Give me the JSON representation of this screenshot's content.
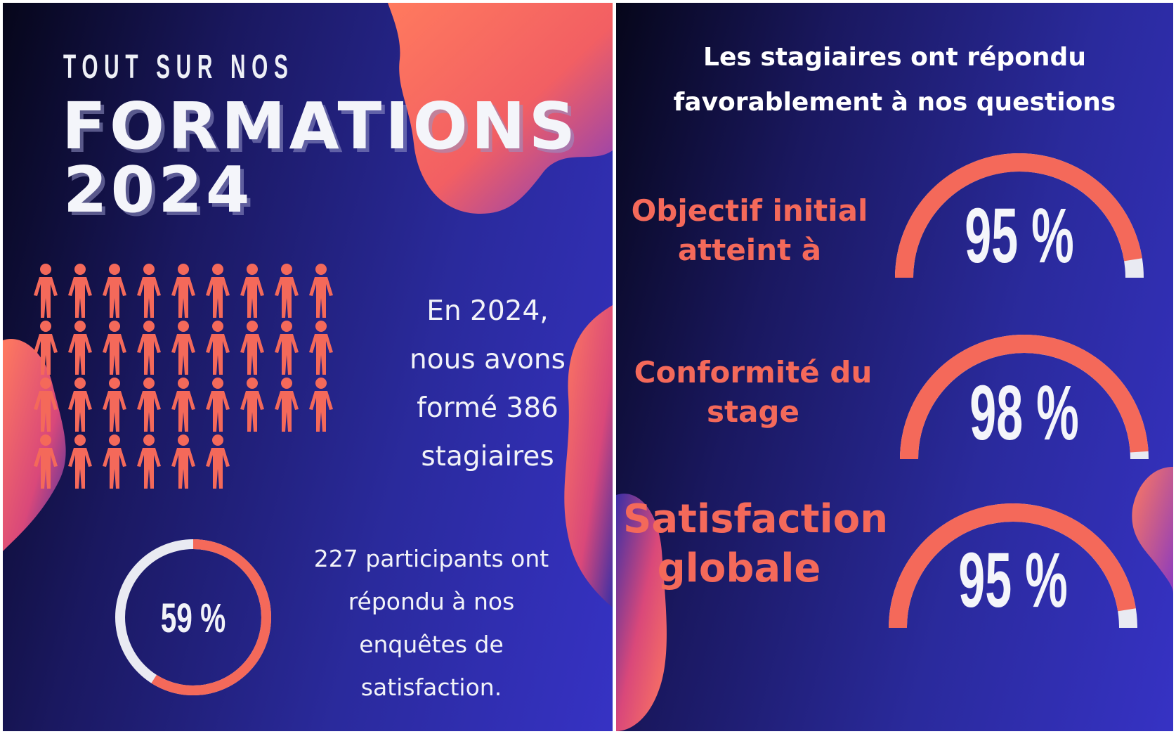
{
  "left": {
    "subtitle": "TOUT SUR NOS",
    "title": "FORMATIONS",
    "year": "2024",
    "trained_lines": [
      "En 2024,",
      "nous avons",
      "formé 386",
      "stagiaires"
    ],
    "response_rate": "59 %",
    "response_fraction": 0.59,
    "response_lines": [
      "227 participants ont",
      "répondu à nos",
      "enquêtes de",
      "satisfaction."
    ],
    "people_icon": "person-icon",
    "people_rows": [
      9,
      9,
      9,
      6
    ]
  },
  "right": {
    "title_lines": [
      "Les stagiaires ont répondu",
      "favorablement à nos questions"
    ],
    "metrics": [
      {
        "label_lines": [
          "Objectif initial",
          "atteint à"
        ],
        "value": "95 %",
        "fraction": 0.95
      },
      {
        "label_lines": [
          "Conformité du",
          "stage"
        ],
        "value": "98 %",
        "fraction": 0.98
      },
      {
        "label_lines": [
          "Satisfaction",
          "globale"
        ],
        "value": "95 %",
        "fraction": 0.95
      }
    ]
  },
  "colors": {
    "accent": "#f4695a",
    "text": "#f2f3f8",
    "track": "#e9eaf2",
    "background": "#1e1c6e"
  }
}
